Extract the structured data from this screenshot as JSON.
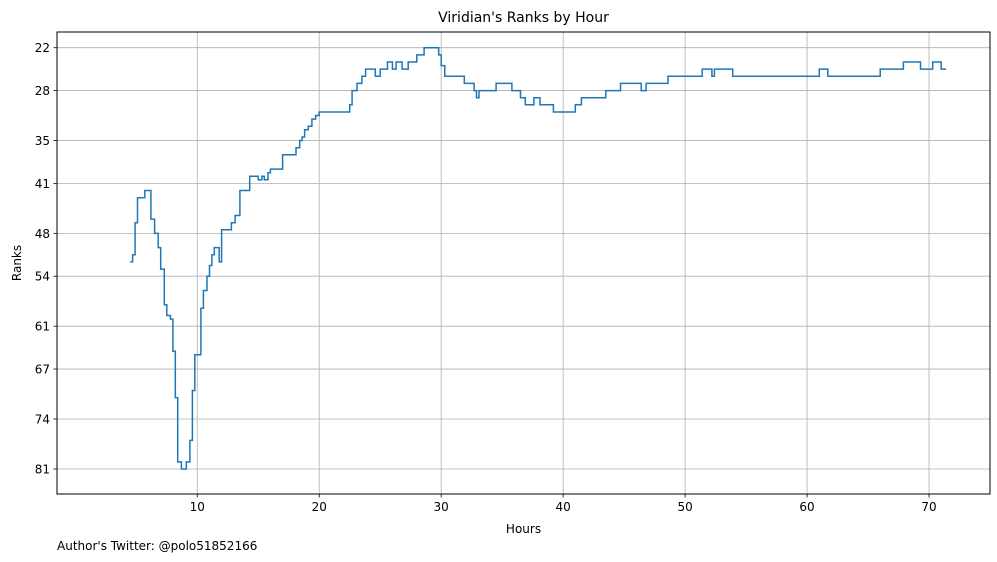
{
  "chart_data": {
    "type": "line",
    "title": "Viridian's Ranks by Hour",
    "xlabel": "Hours",
    "ylabel": "Ranks",
    "xlim": [
      -1.5,
      75
    ],
    "ylim": [
      84.5,
      19.8
    ],
    "y_inverted": true,
    "x_ticks": [
      10,
      20,
      30,
      40,
      50,
      60,
      70
    ],
    "y_ticks": [
      22,
      28,
      35,
      41,
      48,
      54,
      61,
      67,
      74,
      81
    ],
    "grid": true,
    "line_color": "#1f77b4",
    "step": true,
    "series": [
      {
        "points": [
          [
            4.5,
            52
          ],
          [
            4.7,
            51
          ],
          [
            4.9,
            46.5
          ],
          [
            5.1,
            43
          ],
          [
            5.7,
            42
          ],
          [
            6.2,
            46
          ],
          [
            6.5,
            48
          ],
          [
            6.8,
            50
          ],
          [
            7.0,
            53
          ],
          [
            7.3,
            58
          ],
          [
            7.5,
            59.5
          ],
          [
            7.8,
            60
          ],
          [
            8.0,
            64.5
          ],
          [
            8.2,
            71
          ],
          [
            8.4,
            80
          ],
          [
            8.7,
            81
          ],
          [
            9.1,
            80
          ],
          [
            9.4,
            77
          ],
          [
            9.6,
            70
          ],
          [
            9.8,
            65
          ],
          [
            10.3,
            58.5
          ],
          [
            10.5,
            56
          ],
          [
            10.8,
            54
          ],
          [
            11.0,
            52.5
          ],
          [
            11.2,
            51
          ],
          [
            11.4,
            50
          ],
          [
            11.8,
            52
          ],
          [
            12.0,
            47.5
          ],
          [
            12.8,
            46.5
          ],
          [
            13.1,
            45.5
          ],
          [
            13.5,
            42
          ],
          [
            14.3,
            40
          ],
          [
            15.0,
            40.5
          ],
          [
            15.3,
            40
          ],
          [
            15.5,
            40.5
          ],
          [
            15.8,
            39.5
          ],
          [
            16.0,
            39
          ],
          [
            17.0,
            37
          ],
          [
            18.1,
            36
          ],
          [
            18.4,
            35
          ],
          [
            18.6,
            34.5
          ],
          [
            18.8,
            33.5
          ],
          [
            19.1,
            33
          ],
          [
            19.4,
            32
          ],
          [
            19.7,
            31.5
          ],
          [
            20.0,
            31
          ],
          [
            22.5,
            30
          ],
          [
            22.7,
            28
          ],
          [
            23.1,
            27
          ],
          [
            23.5,
            26
          ],
          [
            23.8,
            25
          ],
          [
            24.6,
            26
          ],
          [
            25.0,
            25
          ],
          [
            25.6,
            24
          ],
          [
            26.0,
            25
          ],
          [
            26.3,
            24
          ],
          [
            26.8,
            25
          ],
          [
            27.3,
            24
          ],
          [
            28.0,
            23
          ],
          [
            28.6,
            22
          ],
          [
            29.8,
            23
          ],
          [
            30.0,
            24.5
          ],
          [
            30.3,
            26
          ],
          [
            31.9,
            27
          ],
          [
            32.7,
            28
          ],
          [
            32.9,
            29
          ],
          [
            33.1,
            28
          ],
          [
            34.5,
            27
          ],
          [
            35.8,
            28
          ],
          [
            36.5,
            29
          ],
          [
            36.9,
            30
          ],
          [
            37.6,
            29
          ],
          [
            38.1,
            30
          ],
          [
            39.2,
            31
          ],
          [
            41.0,
            30
          ],
          [
            41.5,
            29
          ],
          [
            43.5,
            28
          ],
          [
            44.7,
            27
          ],
          [
            46.4,
            28
          ],
          [
            46.8,
            27
          ],
          [
            48.6,
            26
          ],
          [
            51.4,
            25
          ],
          [
            52.2,
            26
          ],
          [
            52.4,
            25
          ],
          [
            53.9,
            26
          ],
          [
            61.0,
            25
          ],
          [
            61.7,
            26
          ],
          [
            66.0,
            25
          ],
          [
            67.9,
            24
          ],
          [
            69.3,
            25
          ],
          [
            70.3,
            24
          ],
          [
            71.0,
            25
          ],
          [
            71.4,
            25
          ]
        ]
      }
    ]
  },
  "footnote": "Author's Twitter: @polo51852166"
}
